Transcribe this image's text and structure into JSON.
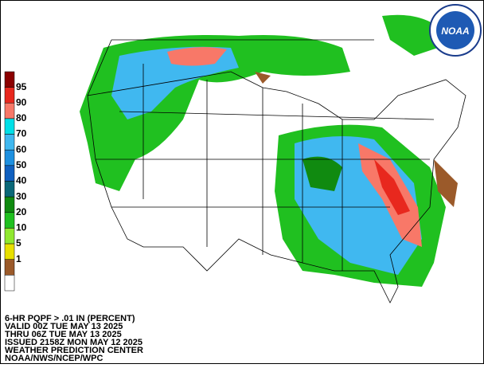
{
  "legend": {
    "labels": [
      "95",
      "90",
      "80",
      "70",
      "60",
      "50",
      "40",
      "30",
      "20",
      "10",
      "5",
      "1"
    ],
    "colors": [
      "#8b0000",
      "#e8281e",
      "#f87868",
      "#00e0e8",
      "#40b8f0",
      "#1e90e0",
      "#1060c0",
      "#0a6878",
      "#108a10",
      "#20c020",
      "#90e830",
      "#e8e000",
      "#9b5a2a",
      "#ffffff"
    ]
  },
  "info": {
    "lines": [
      "6-HR PQPF > .01 IN (PERCENT)",
      "VALID 00Z TUE MAY 13 2025",
      "THRU 06Z TUE MAY 13 2025",
      "ISSUED 2158Z MON MAY 12 2025",
      "WEATHER PREDICTION CENTER",
      "NOAA/NWS/NCEP/WPC"
    ]
  },
  "logo": {
    "text": "NOAA"
  }
}
